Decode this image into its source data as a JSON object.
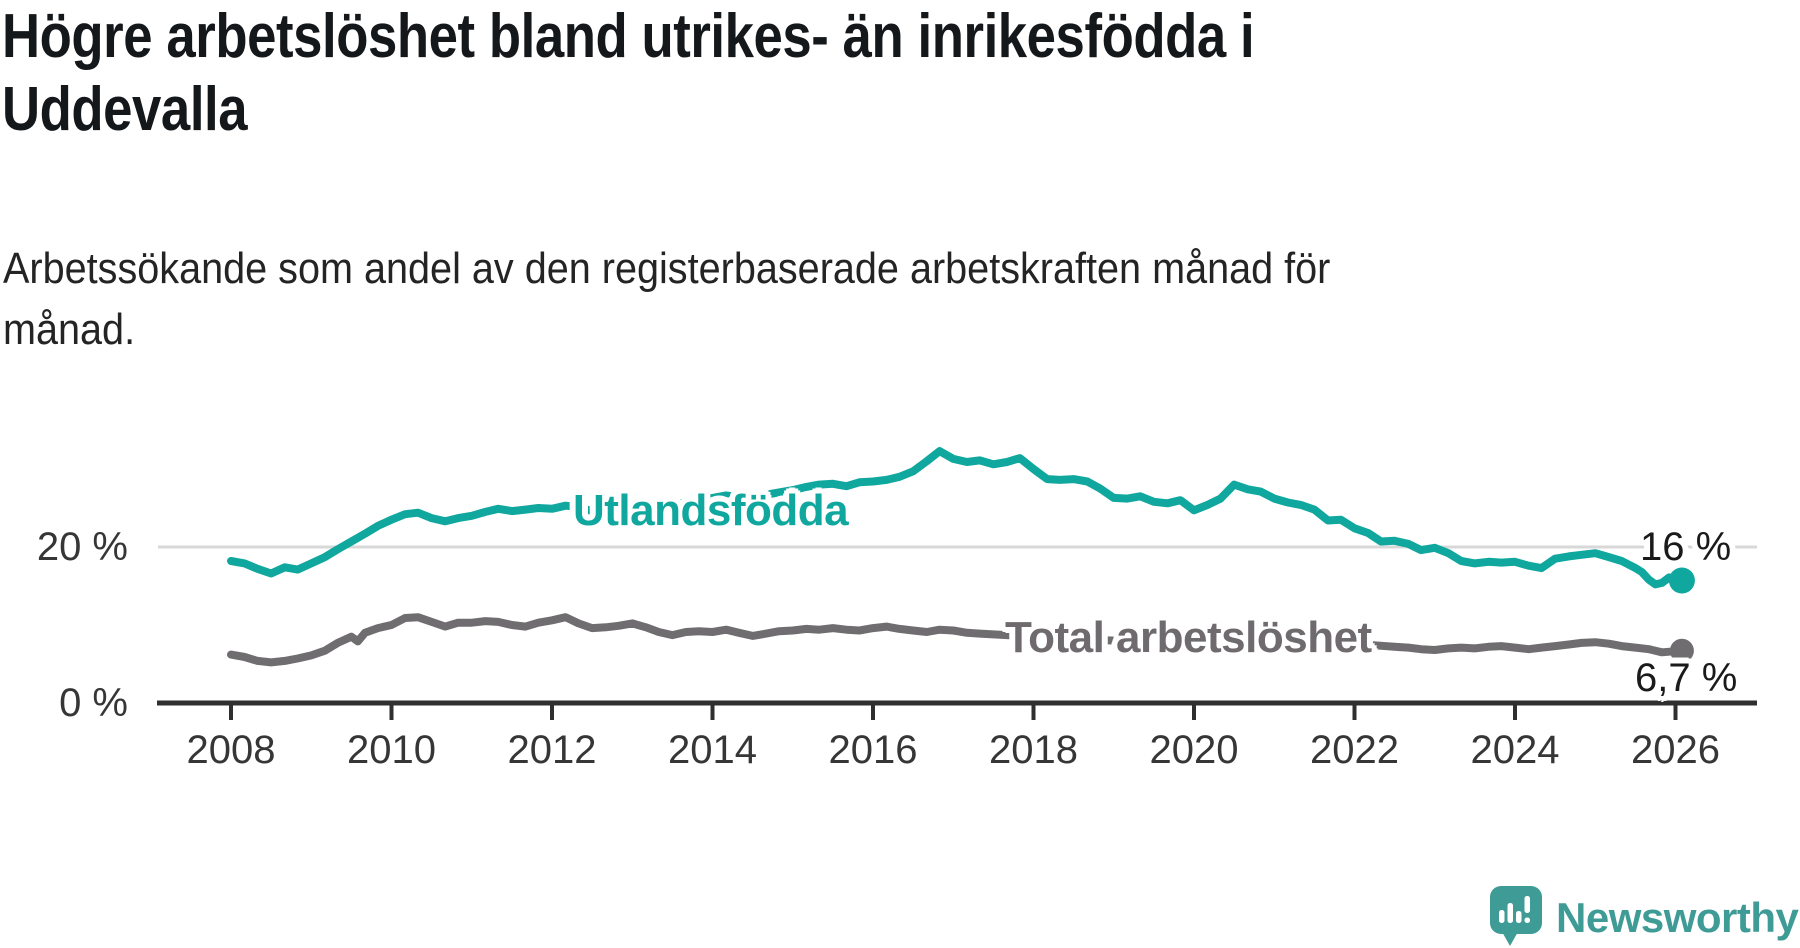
{
  "header": {
    "title": "Högre arbetslöshet bland utrikes- än inrikesfödda i Uddevalla",
    "title_lines": [
      "Högre arbetslöshet bland utrikes- än inrikesfödda i",
      "Uddevalla"
    ],
    "subtitle": "Arbetssökande som andel av den registerbaserade arbetskraften månad för månad.",
    "subtitle_lines": [
      "Arbetssökande som andel av den registerbaserade arbetskraften månad för",
      "månad."
    ]
  },
  "labels": {
    "y20": "20 %",
    "y0": "0 %",
    "series_foreign": "Utlandsfödda",
    "series_total": "Total arbetslöshet",
    "end_foreign": "16 %",
    "end_total": "6,7 %"
  },
  "footer": {
    "brand": "Newsworthy",
    "logo_icon": "newsworthy-speech-bubble-barchart-icon"
  },
  "colors": {
    "teal_line": "#10a79e",
    "gray_line": "#706d70",
    "gray_label": "#6e6a6e",
    "axis": "#2f2f2f",
    "grid": "#d8d8d8",
    "title_text": "#15181b",
    "end_label_text": "#1a1a1a",
    "logo_teal": "#3f9b95"
  },
  "chart_data": {
    "type": "line",
    "title": "Högre arbetslöshet bland utrikes- än inrikesfödda i Uddevalla",
    "subtitle": "Arbetssökande som andel av den registerbaserade arbetskraften månad för månad.",
    "unit": "%",
    "grid": "single horizontal gridline at 20 %",
    "legend_position": "inline labels on lines, value labels at line ends",
    "x_axis": {
      "ticks": [
        2008,
        2010,
        2012,
        2014,
        2016,
        2018,
        2020,
        2022,
        2024,
        2026
      ],
      "range": [
        2008,
        2026.1
      ]
    },
    "y_axis": {
      "shown_ticks": [
        {
          "value": 0,
          "label": "0 %"
        },
        {
          "value": 20,
          "label": "20 %"
        }
      ],
      "range": [
        0,
        34
      ]
    },
    "series": [
      {
        "name": "Utlandsfödda",
        "color": "#10a79e",
        "end_value_label": "16 %",
        "end_value": 16,
        "points": [
          [
            2008.0,
            18.2
          ],
          [
            2008.17,
            17.9
          ],
          [
            2008.33,
            17.2
          ],
          [
            2008.5,
            16.6
          ],
          [
            2008.67,
            17.4
          ],
          [
            2008.83,
            17.1
          ],
          [
            2009.0,
            17.9
          ],
          [
            2009.17,
            18.7
          ],
          [
            2009.33,
            19.7
          ],
          [
            2009.5,
            20.7
          ],
          [
            2009.67,
            21.7
          ],
          [
            2009.83,
            22.7
          ],
          [
            2010.0,
            23.5
          ],
          [
            2010.17,
            24.2
          ],
          [
            2010.33,
            24.4
          ],
          [
            2010.5,
            23.7
          ],
          [
            2010.67,
            23.3
          ],
          [
            2010.83,
            23.7
          ],
          [
            2011.0,
            24.0
          ],
          [
            2011.17,
            24.5
          ],
          [
            2011.33,
            24.9
          ],
          [
            2011.5,
            24.6
          ],
          [
            2011.67,
            24.8
          ],
          [
            2011.83,
            25.0
          ],
          [
            2012.0,
            24.9
          ],
          [
            2012.17,
            25.3
          ],
          [
            2012.33,
            25.1
          ],
          [
            2012.5,
            24.6
          ],
          [
            2012.67,
            24.8
          ],
          [
            2012.83,
            24.4
          ],
          [
            2013.0,
            24.2
          ],
          [
            2013.17,
            24.5
          ],
          [
            2013.33,
            24.8
          ],
          [
            2013.5,
            25.3
          ],
          [
            2013.67,
            25.7
          ],
          [
            2013.83,
            26.0
          ],
          [
            2014.0,
            26.3
          ],
          [
            2014.17,
            26.6
          ],
          [
            2014.33,
            26.4
          ],
          [
            2014.5,
            26.2
          ],
          [
            2014.67,
            26.7
          ],
          [
            2014.83,
            27.0
          ],
          [
            2015.0,
            27.3
          ],
          [
            2015.17,
            27.7
          ],
          [
            2015.33,
            28.0
          ],
          [
            2015.5,
            28.1
          ],
          [
            2015.67,
            27.8
          ],
          [
            2015.83,
            28.3
          ],
          [
            2016.0,
            28.4
          ],
          [
            2016.17,
            28.6
          ],
          [
            2016.33,
            29.0
          ],
          [
            2016.5,
            29.7
          ],
          [
            2016.67,
            31.0
          ],
          [
            2016.83,
            32.3
          ],
          [
            2017.0,
            31.3
          ],
          [
            2017.17,
            30.9
          ],
          [
            2017.33,
            31.1
          ],
          [
            2017.5,
            30.6
          ],
          [
            2017.67,
            30.9
          ],
          [
            2017.83,
            31.4
          ],
          [
            2018.0,
            30.0
          ],
          [
            2018.17,
            28.7
          ],
          [
            2018.33,
            28.6
          ],
          [
            2018.5,
            28.7
          ],
          [
            2018.67,
            28.4
          ],
          [
            2018.83,
            27.5
          ],
          [
            2019.0,
            26.3
          ],
          [
            2019.17,
            26.2
          ],
          [
            2019.33,
            26.5
          ],
          [
            2019.5,
            25.8
          ],
          [
            2019.67,
            25.6
          ],
          [
            2019.83,
            26.0
          ],
          [
            2020.0,
            24.7
          ],
          [
            2020.17,
            25.4
          ],
          [
            2020.33,
            26.2
          ],
          [
            2020.5,
            28.0
          ],
          [
            2020.67,
            27.4
          ],
          [
            2020.83,
            27.1
          ],
          [
            2021.0,
            26.2
          ],
          [
            2021.17,
            25.7
          ],
          [
            2021.33,
            25.4
          ],
          [
            2021.5,
            24.8
          ],
          [
            2021.67,
            23.4
          ],
          [
            2021.83,
            23.5
          ],
          [
            2022.0,
            22.4
          ],
          [
            2022.17,
            21.8
          ],
          [
            2022.33,
            20.7
          ],
          [
            2022.5,
            20.8
          ],
          [
            2022.67,
            20.4
          ],
          [
            2022.83,
            19.6
          ],
          [
            2023.0,
            19.9
          ],
          [
            2023.17,
            19.2
          ],
          [
            2023.33,
            18.2
          ],
          [
            2023.5,
            17.9
          ],
          [
            2023.67,
            18.1
          ],
          [
            2023.83,
            18.0
          ],
          [
            2024.0,
            18.1
          ],
          [
            2024.17,
            17.6
          ],
          [
            2024.33,
            17.3
          ],
          [
            2024.5,
            18.5
          ],
          [
            2024.67,
            18.8
          ],
          [
            2024.83,
            19.0
          ],
          [
            2025.0,
            19.2
          ],
          [
            2025.17,
            18.7
          ],
          [
            2025.33,
            18.2
          ],
          [
            2025.5,
            17.3
          ],
          [
            2025.58,
            16.8
          ],
          [
            2025.67,
            15.8
          ],
          [
            2025.75,
            15.2
          ],
          [
            2025.83,
            15.4
          ],
          [
            2025.92,
            16.1
          ],
          [
            2026.0,
            15.9
          ],
          [
            2026.08,
            15.7
          ]
        ]
      },
      {
        "name": "Total arbetslöshet",
        "color": "#706d70",
        "end_value_label": "6,7 %",
        "end_value": 6.7,
        "points": [
          [
            2008.0,
            6.2
          ],
          [
            2008.17,
            5.9
          ],
          [
            2008.33,
            5.4
          ],
          [
            2008.5,
            5.2
          ],
          [
            2008.67,
            5.4
          ],
          [
            2008.83,
            5.7
          ],
          [
            2009.0,
            6.1
          ],
          [
            2009.17,
            6.7
          ],
          [
            2009.33,
            7.7
          ],
          [
            2009.5,
            8.5
          ],
          [
            2009.58,
            7.9
          ],
          [
            2009.67,
            9.0
          ],
          [
            2009.83,
            9.6
          ],
          [
            2010.0,
            10.0
          ],
          [
            2010.17,
            10.9
          ],
          [
            2010.33,
            11.0
          ],
          [
            2010.5,
            10.4
          ],
          [
            2010.67,
            9.8
          ],
          [
            2010.83,
            10.3
          ],
          [
            2011.0,
            10.3
          ],
          [
            2011.17,
            10.5
          ],
          [
            2011.33,
            10.4
          ],
          [
            2011.5,
            10.0
          ],
          [
            2011.67,
            9.8
          ],
          [
            2011.83,
            10.3
          ],
          [
            2012.0,
            10.6
          ],
          [
            2012.17,
            11.0
          ],
          [
            2012.33,
            10.2
          ],
          [
            2012.5,
            9.6
          ],
          [
            2012.67,
            9.7
          ],
          [
            2012.83,
            9.9
          ],
          [
            2013.0,
            10.2
          ],
          [
            2013.17,
            9.7
          ],
          [
            2013.33,
            9.1
          ],
          [
            2013.5,
            8.7
          ],
          [
            2013.67,
            9.1
          ],
          [
            2013.83,
            9.2
          ],
          [
            2014.0,
            9.1
          ],
          [
            2014.17,
            9.4
          ],
          [
            2014.33,
            9.0
          ],
          [
            2014.5,
            8.6
          ],
          [
            2014.67,
            8.9
          ],
          [
            2014.83,
            9.2
          ],
          [
            2015.0,
            9.3
          ],
          [
            2015.17,
            9.5
          ],
          [
            2015.33,
            9.4
          ],
          [
            2015.5,
            9.6
          ],
          [
            2015.67,
            9.4
          ],
          [
            2015.83,
            9.3
          ],
          [
            2016.0,
            9.6
          ],
          [
            2016.17,
            9.8
          ],
          [
            2016.33,
            9.5
          ],
          [
            2016.5,
            9.3
          ],
          [
            2016.67,
            9.1
          ],
          [
            2016.83,
            9.4
          ],
          [
            2017.0,
            9.3
          ],
          [
            2017.17,
            9.0
          ],
          [
            2017.33,
            8.9
          ],
          [
            2017.5,
            8.8
          ],
          [
            2017.67,
            8.7
          ],
          [
            2017.83,
            8.6
          ],
          [
            2018.0,
            8.5
          ],
          [
            2018.25,
            8.3
          ],
          [
            2018.5,
            8.2
          ],
          [
            2018.75,
            8.1
          ],
          [
            2019.0,
            8.0
          ],
          [
            2019.25,
            8.0
          ],
          [
            2019.5,
            8.1
          ],
          [
            2019.75,
            8.2
          ],
          [
            2020.0,
            8.5
          ],
          [
            2020.25,
            8.8
          ],
          [
            2020.5,
            8.8
          ],
          [
            2020.75,
            8.6
          ],
          [
            2021.0,
            8.4
          ],
          [
            2021.25,
            8.2
          ],
          [
            2021.5,
            7.9
          ],
          [
            2021.75,
            7.7
          ],
          [
            2022.0,
            7.6
          ],
          [
            2022.25,
            7.4
          ],
          [
            2022.5,
            7.2
          ],
          [
            2022.67,
            7.1
          ],
          [
            2022.83,
            6.9
          ],
          [
            2023.0,
            6.8
          ],
          [
            2023.17,
            7.0
          ],
          [
            2023.33,
            7.1
          ],
          [
            2023.5,
            7.0
          ],
          [
            2023.67,
            7.2
          ],
          [
            2023.83,
            7.3
          ],
          [
            2024.0,
            7.1
          ],
          [
            2024.17,
            6.9
          ],
          [
            2024.33,
            7.1
          ],
          [
            2024.5,
            7.3
          ],
          [
            2024.67,
            7.5
          ],
          [
            2024.83,
            7.7
          ],
          [
            2025.0,
            7.8
          ],
          [
            2025.17,
            7.6
          ],
          [
            2025.33,
            7.3
          ],
          [
            2025.5,
            7.1
          ],
          [
            2025.67,
            6.9
          ],
          [
            2025.83,
            6.5
          ],
          [
            2026.08,
            6.7
          ]
        ]
      }
    ]
  }
}
